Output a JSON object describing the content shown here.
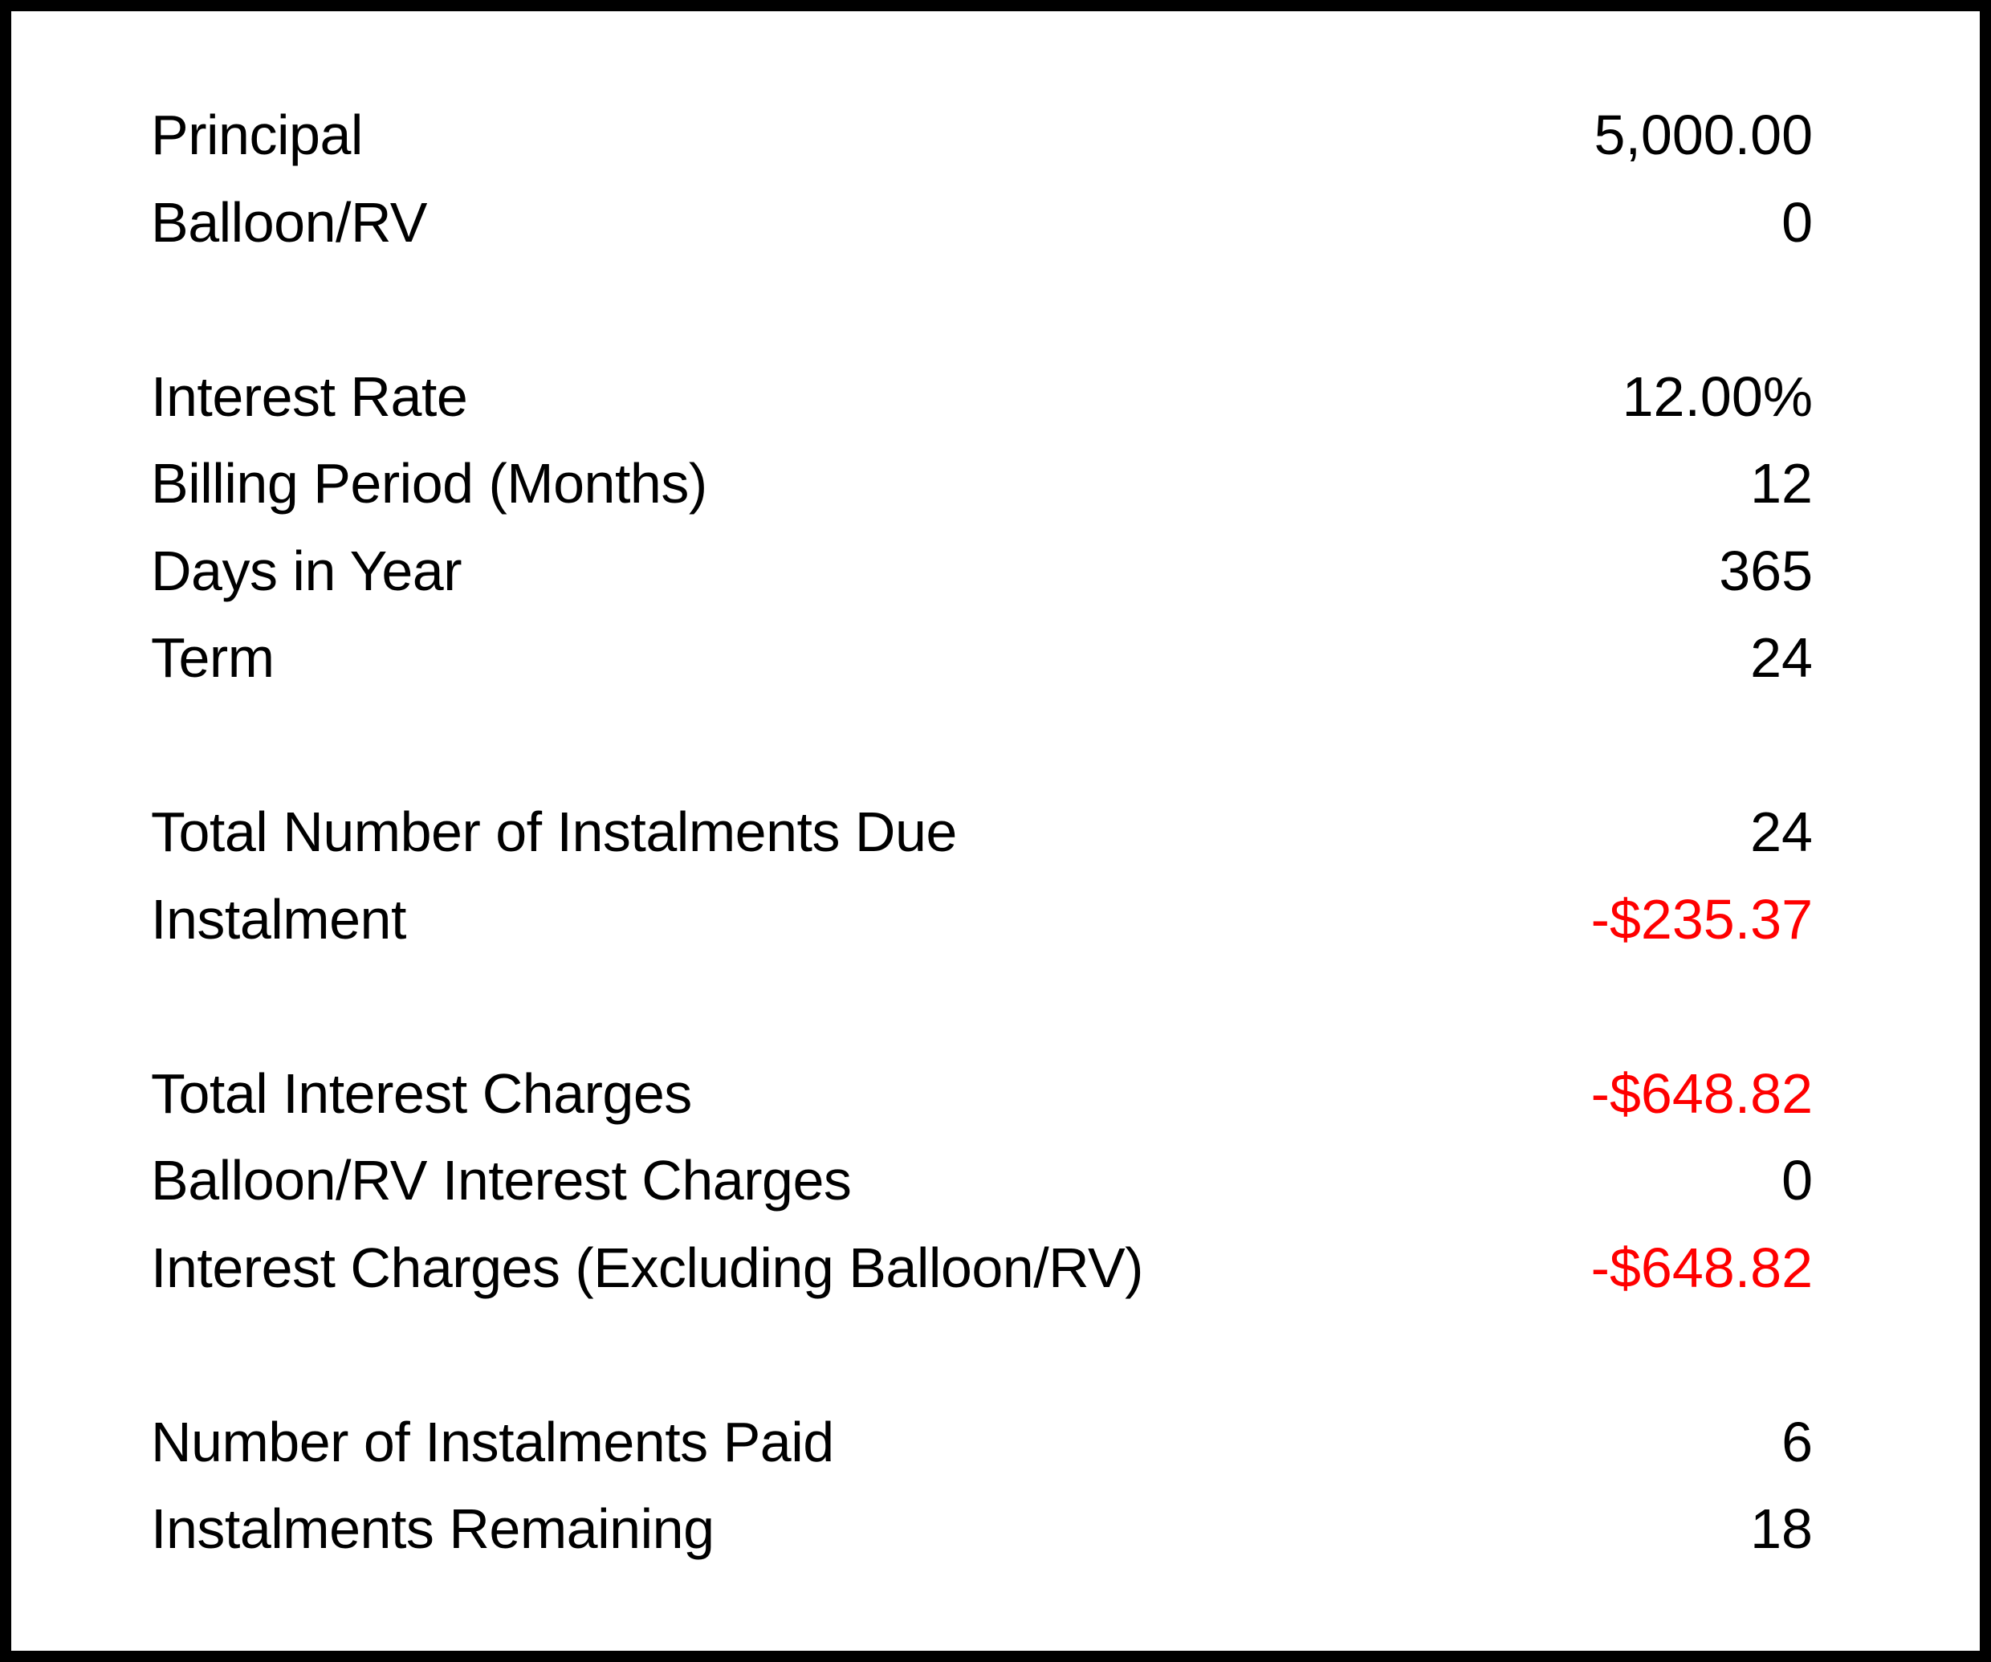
{
  "colors": {
    "text": "#000000",
    "negative_value": "#ff0000",
    "border": "#000000",
    "background": "#ffffff"
  },
  "table": {
    "rows": [
      {
        "label": "Principal",
        "value": "5,000.00",
        "negative": false
      },
      {
        "label": "Balloon/RV",
        "value": "0",
        "negative": false
      },
      {
        "label": "Interest Rate",
        "value": "12.00%",
        "negative": false
      },
      {
        "label": "Billing Period (Months)",
        "value": "12",
        "negative": false
      },
      {
        "label": "Days in Year",
        "value": "365",
        "negative": false
      },
      {
        "label": "Term",
        "value": "24",
        "negative": false
      },
      {
        "label": "Total Number of Instalments Due",
        "value": "24",
        "negative": false
      },
      {
        "label": "Instalment",
        "value": "-$235.37",
        "negative": true
      },
      {
        "label": "Total Interest Charges",
        "value": "-$648.82",
        "negative": true
      },
      {
        "label": "Balloon/RV Interest Charges",
        "value": "0",
        "negative": false
      },
      {
        "label": "Interest Charges (Excluding Balloon/RV)",
        "value": "-$648.82",
        "negative": true
      },
      {
        "label": "Number of Instalments Paid",
        "value": "6",
        "negative": false
      },
      {
        "label": "Instalments Remaining",
        "value": "18",
        "negative": false
      }
    ]
  }
}
